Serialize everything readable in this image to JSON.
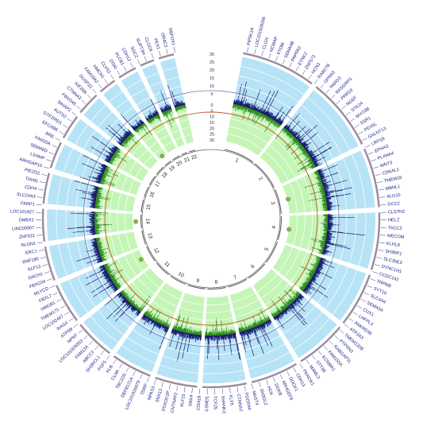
{
  "chart_data": {
    "type": "circos",
    "chromosomes": [
      "1",
      "2",
      "3",
      "4",
      "5",
      "6",
      "7",
      "8",
      "9",
      "10",
      "11",
      "12",
      "13",
      "14",
      "15",
      "16",
      "17",
      "18",
      "19",
      "20",
      "21",
      "22"
    ],
    "outer_track_ticks": [
      "30",
      "25",
      "20",
      "15",
      "10",
      "5"
    ],
    "inner_track_ticks": [
      "0",
      "5",
      "10",
      "15",
      "20",
      "25",
      "30"
    ],
    "colors": {
      "outer_band": "#b7e3f6",
      "inner_band": "#c4f5b6",
      "outer_bars": "#1a1a6e",
      "inner_bars": "#2e8b1e",
      "threshold": "#c25a2a",
      "gene_text": "#1a1a8c",
      "marker": "#8fb04a"
    },
    "genes": [
      "PIP5K1A",
      "LOC101928266",
      "CLGN",
      "NCMAP",
      "STOM",
      "SEMA4B",
      "PAPPA2",
      "ETNK2",
      "ZNF573",
      "HCN3",
      "RAB27B",
      "GPR63",
      "PARD3",
      "RASGRP3",
      "PRR16",
      "NGEF",
      "STK24",
      "MYO3B",
      "SSR1",
      "PEX5L",
      "GALNT13",
      "LRP1B",
      "EPHA3",
      "PLXNA4",
      "WNT3",
      "CDKAL1",
      "TMEM18",
      "MBNL1",
      "ALG10",
      "GCC2",
      "CLSTN2",
      "HELZ",
      "TACC2",
      "MECOM",
      "KLHL8",
      "SH3RF1",
      "SLC35E3",
      "DYNC1H1",
      "CCDC142",
      "TRPM8",
      "SYT16",
      "SLC4A4",
      "SEMA5A",
      "CUX1",
      "LHFPL3",
      "ANKRD36",
      "ATP2A3",
      "TMEM132B",
      "PTPRN2",
      "RABGAP1L",
      "FAM155A",
      "KCNMA1",
      "STT3B",
      "MAML3",
      "PKNOX1",
      "CDH13",
      "DOCK1",
      "ARHGEF9",
      "DGKB",
      "HCK",
      "SH3GL2",
      "MAST4",
      "PDZRN4",
      "CTNNA2",
      "KLF5",
      "SHANK3",
      "TCF25",
      "CSMD1",
      "CDH18",
      "SNX4",
      "KLF15",
      "CNTNAP2",
      "PDXDC2P",
      "SNX13",
      "NPAS3",
      "TDRP",
      "LOC101926979",
      "DEFB121A",
      "TBC1D5",
      "CLNK",
      "KLB",
      "FGF5",
      "SH3RCL1",
      "ABCC2",
      "FAM13A",
      "LOC101929353",
      "NPNT",
      "ATP5B",
      "RAI14",
      "LOC102467",
      "TMEM171",
      "HMGB1",
      "FBXL7",
      "MLYCD",
      "FBXO34",
      "DACH1",
      "KLF13",
      "RNF180",
      "ERC1",
      "NLGN1",
      "ZNF521",
      "LINC00907",
      "DMBX1",
      "LOC101927",
      "FARP1",
      "SLC24A3",
      "CDH4",
      "TIAM1",
      "PIEZO2",
      "ARHGAP15",
      "LSAMP",
      "SEMA6D",
      "FAM20A",
      "BRE",
      "EFCAB6",
      "GTF2IRD1",
      "AUTS2",
      "BAIAP2",
      "FBXO45",
      "CTNNA3",
      "KIF26B",
      "DUSP22",
      "FAM19A2",
      "HMCN1",
      "CLVS1",
      "DGKI",
      "PLCB1",
      "CDH12",
      "SGCZ",
      "SUPT3H",
      "CLOCK",
      "PEX1",
      "OR4C3",
      "RBFOX1"
    ]
  }
}
